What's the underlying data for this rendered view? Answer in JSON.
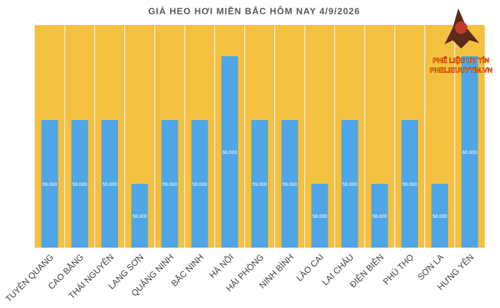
{
  "chart_data": {
    "type": "bar",
    "title": "GIÁ HEO HƠI MIỀN BẮC HÔM NAY 4/9/2026",
    "categories": [
      "TUYÊN QUANG",
      "CAO BẰNG",
      "THÁI NGUYÊN",
      "LẠNG SƠN",
      "QUẢNG NINH",
      "BẮC NINH",
      "HÀ NỘI",
      "HẢI PHÒNG",
      "NINH BÌNH",
      "LÀO CAI",
      "LAI CHÂU",
      "ĐIỆN BIÊN",
      "PHÚ THỌ",
      "SƠN LA",
      "HƯNG YÊN"
    ],
    "values": [
      59000,
      59000,
      59000,
      58000,
      59000,
      59000,
      60000,
      59000,
      59000,
      58000,
      59000,
      58000,
      59000,
      58000,
      60000
    ],
    "value_labels": [
      "59.000",
      "59.000",
      "59.000",
      "58.000",
      "59.000",
      "59.000",
      "60.000",
      "59.000",
      "59.000",
      "58.000",
      "59.000",
      "58.000",
      "59.000",
      "58.000",
      "60.000"
    ],
    "color": "#4ea6e6",
    "background": "#f4c040",
    "ylim": [
      57000,
      60490
    ]
  },
  "logo": {
    "line1": "PHẾ LIỆU UY TÍN",
    "line2": "PHELIEUUYTIN.VN"
  }
}
